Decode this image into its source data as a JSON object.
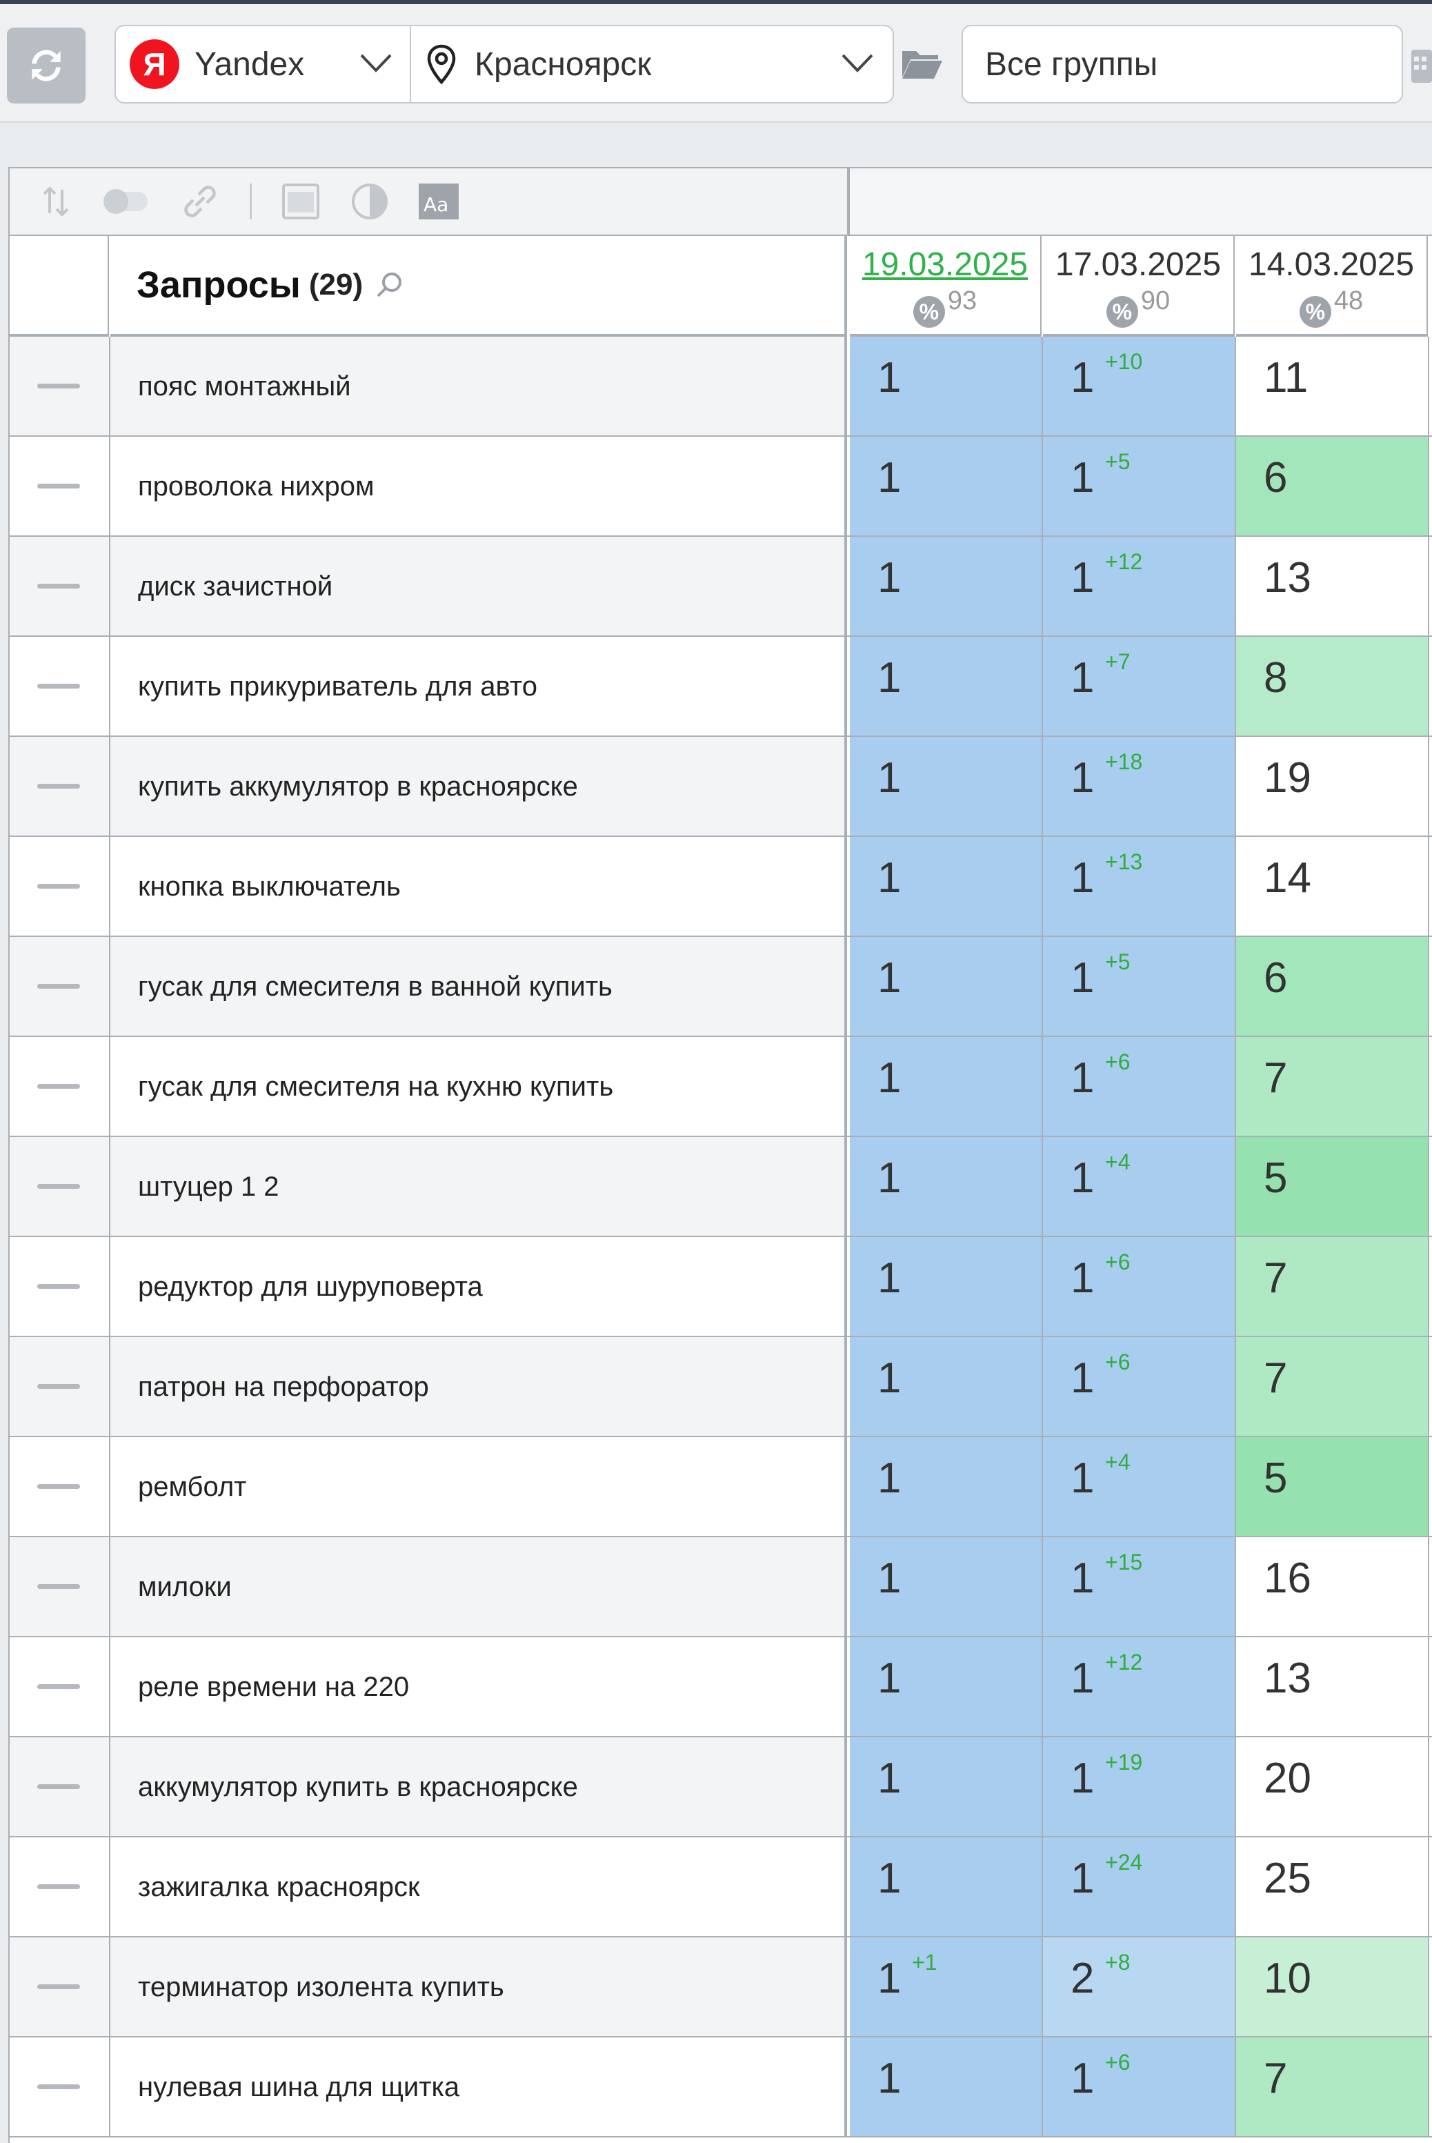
{
  "toolbar": {
    "engine": "Yandex",
    "engine_logo": "Я",
    "region": "Красноярск",
    "group": "Все группы"
  },
  "table": {
    "tools": [
      "sort-icon",
      "toggle-icon",
      "link-icon",
      "calendar-grid-icon",
      "contrast-icon",
      "font-size-icon"
    ],
    "queries_header": "Запросы",
    "queries_count": "(29)",
    "dates": [
      {
        "date": "19.03.2025",
        "percent": "93",
        "active": true
      },
      {
        "date": "17.03.2025",
        "percent": "90",
        "active": false
      },
      {
        "date": "14.03.2025",
        "percent": "48",
        "active": false
      }
    ],
    "pct_symbol": "%",
    "rows": [
      {
        "query": "пояс монтажный",
        "pos": [
          {
            "v": "1",
            "c": ""
          },
          {
            "v": "1",
            "c": "+10"
          },
          {
            "v": "11",
            "c": ""
          }
        ]
      },
      {
        "query": "проволока нихром",
        "pos": [
          {
            "v": "1",
            "c": ""
          },
          {
            "v": "1",
            "c": "+5"
          },
          {
            "v": "6",
            "c": ""
          }
        ]
      },
      {
        "query": "диск зачистной",
        "pos": [
          {
            "v": "1",
            "c": ""
          },
          {
            "v": "1",
            "c": "+12"
          },
          {
            "v": "13",
            "c": ""
          }
        ]
      },
      {
        "query": "купить прикуриватель для авто",
        "pos": [
          {
            "v": "1",
            "c": ""
          },
          {
            "v": "1",
            "c": "+7"
          },
          {
            "v": "8",
            "c": ""
          }
        ]
      },
      {
        "query": "купить аккумулятор в красноярске",
        "pos": [
          {
            "v": "1",
            "c": ""
          },
          {
            "v": "1",
            "c": "+18"
          },
          {
            "v": "19",
            "c": ""
          }
        ]
      },
      {
        "query": "кнопка выключатель",
        "pos": [
          {
            "v": "1",
            "c": ""
          },
          {
            "v": "1",
            "c": "+13"
          },
          {
            "v": "14",
            "c": ""
          }
        ]
      },
      {
        "query": "гусак для смесителя в ванной купить",
        "pos": [
          {
            "v": "1",
            "c": ""
          },
          {
            "v": "1",
            "c": "+5"
          },
          {
            "v": "6",
            "c": ""
          }
        ]
      },
      {
        "query": "гусак для смесителя на кухню купить",
        "pos": [
          {
            "v": "1",
            "c": ""
          },
          {
            "v": "1",
            "c": "+6"
          },
          {
            "v": "7",
            "c": ""
          }
        ]
      },
      {
        "query": "штуцер 1 2",
        "pos": [
          {
            "v": "1",
            "c": ""
          },
          {
            "v": "1",
            "c": "+4"
          },
          {
            "v": "5",
            "c": ""
          }
        ]
      },
      {
        "query": "редуктор для шуруповерта",
        "pos": [
          {
            "v": "1",
            "c": ""
          },
          {
            "v": "1",
            "c": "+6"
          },
          {
            "v": "7",
            "c": ""
          }
        ]
      },
      {
        "query": "патрон на перфоратор",
        "pos": [
          {
            "v": "1",
            "c": ""
          },
          {
            "v": "1",
            "c": "+6"
          },
          {
            "v": "7",
            "c": ""
          }
        ]
      },
      {
        "query": "ремболт",
        "pos": [
          {
            "v": "1",
            "c": ""
          },
          {
            "v": "1",
            "c": "+4"
          },
          {
            "v": "5",
            "c": ""
          }
        ]
      },
      {
        "query": "милоки",
        "pos": [
          {
            "v": "1",
            "c": ""
          },
          {
            "v": "1",
            "c": "+15"
          },
          {
            "v": "16",
            "c": ""
          }
        ]
      },
      {
        "query": "реле времени на 220",
        "pos": [
          {
            "v": "1",
            "c": ""
          },
          {
            "v": "1",
            "c": "+12"
          },
          {
            "v": "13",
            "c": ""
          }
        ]
      },
      {
        "query": "аккумулятор купить в красноярске",
        "pos": [
          {
            "v": "1",
            "c": ""
          },
          {
            "v": "1",
            "c": "+19"
          },
          {
            "v": "20",
            "c": ""
          }
        ]
      },
      {
        "query": "зажигалка красноярск",
        "pos": [
          {
            "v": "1",
            "c": ""
          },
          {
            "v": "1",
            "c": "+24"
          },
          {
            "v": "25",
            "c": ""
          }
        ]
      },
      {
        "query": "терминатор изолента купить",
        "pos": [
          {
            "v": "1",
            "c": "+1"
          },
          {
            "v": "2",
            "c": "+8"
          },
          {
            "v": "10",
            "c": ""
          }
        ]
      },
      {
        "query": "нулевая шина для щитка",
        "pos": [
          {
            "v": "1",
            "c": ""
          },
          {
            "v": "1",
            "c": "+6"
          },
          {
            "v": "7",
            "c": ""
          }
        ]
      }
    ]
  },
  "colors": {
    "top1": "#a8cdef",
    "top2": "#b8d8f2",
    "top5": "#95e2b0",
    "top6": "#a4e6bc",
    "top7": "#afe9c3",
    "top8": "#b6ebc9",
    "top10": "#c6efd5",
    "default": "#ffffff"
  }
}
